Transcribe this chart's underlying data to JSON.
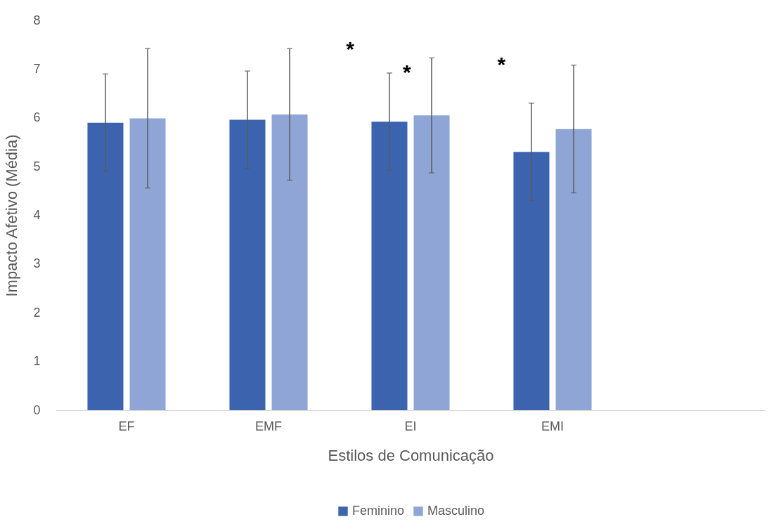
{
  "chart_data": {
    "type": "bar",
    "xlabel": "Estilos de Comunicação",
    "ylabel": "Impacto Afetivo (Média)",
    "categories": [
      "EF",
      "EMF",
      "EI",
      "EMI",
      null
    ],
    "series": [
      {
        "name": "Feminino",
        "color": "#3c64ae",
        "values": [
          5.9,
          5.96,
          5.92,
          5.3,
          null
        ],
        "errors": [
          1.0,
          1.0,
          1.0,
          1.0,
          null
        ]
      },
      {
        "name": "Masculino",
        "color": "#8fa5d6",
        "values": [
          5.99,
          6.07,
          6.05,
          5.77,
          null
        ],
        "errors": [
          1.43,
          1.35,
          1.18,
          1.31,
          null
        ]
      }
    ],
    "ylim": [
      0,
      8
    ],
    "yticks": [
      0,
      1,
      2,
      3,
      4,
      5,
      6,
      7,
      8
    ],
    "grid": false,
    "legend": "bottom",
    "annotations": [
      "*",
      "*",
      "*"
    ]
  }
}
